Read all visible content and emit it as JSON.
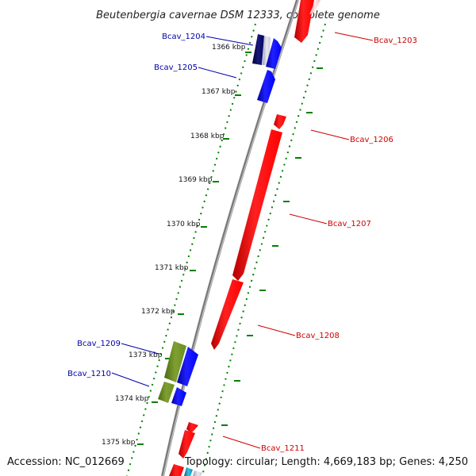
{
  "title": "Beutenbergia cavernae DSM 12333, complete genome",
  "footer": {
    "accession": "Accession: NC_012669",
    "topology": "Topology: circular; Length: 4,669,183 bp; Genes: 4,250"
  },
  "colors": {
    "forward": "#ff0000",
    "reverse": "#0000ff",
    "rna": "#6b8e23",
    "dark_navy": "#000066",
    "backbone": "#808080",
    "tick_dots": "#008000",
    "label_forward": "#cc0000",
    "label_reverse": "#0000aa"
  },
  "ticks": [
    "1366 kbp",
    "1367 kbp",
    "1368 kbp",
    "1369 kbp",
    "1370 kbp",
    "1371 kbp",
    "1372 kbp",
    "1373 kbp",
    "1374 kbp",
    "1375 kbp"
  ],
  "gene_labels": {
    "bcav_1203": "Bcav_1203",
    "bcav_1204": "Bcav_1204",
    "bcav_1205": "Bcav_1205",
    "bcav_1206": "Bcav_1206",
    "bcav_1207": "Bcav_1207",
    "bcav_1208": "Bcav_1208",
    "bcav_1209": "Bcav_1209",
    "bcav_1210": "Bcav_1210",
    "bcav_1211": "Bcav_1211"
  }
}
